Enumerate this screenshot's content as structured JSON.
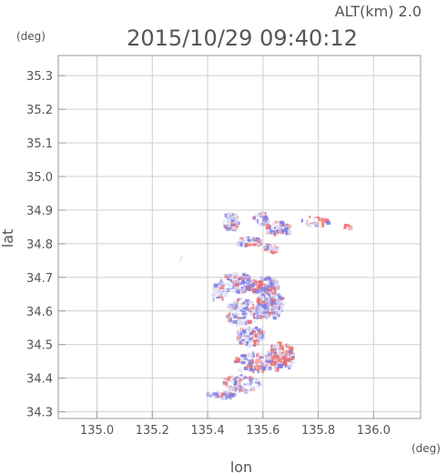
{
  "header": {
    "altitude_label": "ALT(km) 2.0",
    "timestamp": "2015/10/29 09:40:12",
    "y_unit": "(deg)",
    "x_unit": "(deg)"
  },
  "chart_data": {
    "type": "heatmap",
    "title": "2015/10/29 09:40:12",
    "subtitle": "ALT(km) 2.0",
    "xlabel": "lon",
    "ylabel": "lat",
    "xlim": [
      134.86,
      136.17
    ],
    "ylim": [
      34.28,
      35.36
    ],
    "grid": true,
    "x_ticks": [
      {
        "value": 135.0,
        "label": "135.0"
      },
      {
        "value": 135.2,
        "label": "135.2"
      },
      {
        "value": 135.4,
        "label": "135.4"
      },
      {
        "value": 135.6,
        "label": "135.6"
      },
      {
        "value": 135.8,
        "label": "135.8"
      },
      {
        "value": 136.0,
        "label": "136.0"
      }
    ],
    "y_ticks": [
      {
        "value": 34.3,
        "label": "34.3"
      },
      {
        "value": 34.4,
        "label": "34.4"
      },
      {
        "value": 34.5,
        "label": "34.5"
      },
      {
        "value": 34.6,
        "label": "34.6"
      },
      {
        "value": 34.7,
        "label": "34.7"
      },
      {
        "value": 34.8,
        "label": "34.8"
      },
      {
        "value": 34.9,
        "label": "34.9"
      },
      {
        "value": 35.0,
        "label": "35.0"
      },
      {
        "value": 35.1,
        "label": "35.1"
      },
      {
        "value": 35.2,
        "label": "35.2"
      },
      {
        "value": 35.3,
        "label": "35.3"
      }
    ],
    "colors": {
      "positive": "#ee6f6f",
      "negative": "#7f7fe6",
      "neutral": "#dcdcf2",
      "grid": "#cfcfcf",
      "frame": "#9a9a9a"
    },
    "clusters": [
      {
        "lon": 135.48,
        "lat": 34.87,
        "rlon": 0.03,
        "rlat": 0.025,
        "n": 55,
        "p": 0.2
      },
      {
        "lon": 135.59,
        "lat": 34.88,
        "rlon": 0.03,
        "rlat": 0.02,
        "n": 30,
        "p": 0.2
      },
      {
        "lon": 135.65,
        "lat": 34.85,
        "rlon": 0.05,
        "rlat": 0.02,
        "n": 45,
        "p": 0.25
      },
      {
        "lon": 135.78,
        "lat": 34.87,
        "rlon": 0.05,
        "rlat": 0.015,
        "n": 25,
        "p": 0.5
      },
      {
        "lon": 135.9,
        "lat": 34.855,
        "rlon": 0.01,
        "rlat": 0.008,
        "n": 5,
        "p": 0.8
      },
      {
        "lon": 135.55,
        "lat": 34.81,
        "rlon": 0.05,
        "rlat": 0.015,
        "n": 40,
        "p": 0.2
      },
      {
        "lon": 135.62,
        "lat": 34.79,
        "rlon": 0.03,
        "rlat": 0.012,
        "n": 30,
        "p": 0.3
      },
      {
        "lon": 135.5,
        "lat": 34.69,
        "rlon": 0.06,
        "rlat": 0.03,
        "n": 120,
        "p": 0.15
      },
      {
        "lon": 135.6,
        "lat": 34.68,
        "rlon": 0.05,
        "rlat": 0.025,
        "n": 110,
        "p": 0.25
      },
      {
        "lon": 135.62,
        "lat": 34.62,
        "rlon": 0.05,
        "rlat": 0.04,
        "n": 160,
        "p": 0.25
      },
      {
        "lon": 135.52,
        "lat": 34.6,
        "rlon": 0.06,
        "rlat": 0.04,
        "n": 130,
        "p": 0.15
      },
      {
        "lon": 135.44,
        "lat": 34.66,
        "rlon": 0.03,
        "rlat": 0.03,
        "n": 30,
        "p": 0.1
      },
      {
        "lon": 135.55,
        "lat": 34.53,
        "rlon": 0.05,
        "rlat": 0.03,
        "n": 90,
        "p": 0.2
      },
      {
        "lon": 135.66,
        "lat": 34.47,
        "rlon": 0.05,
        "rlat": 0.04,
        "n": 110,
        "p": 0.35
      },
      {
        "lon": 135.56,
        "lat": 34.45,
        "rlon": 0.07,
        "rlat": 0.03,
        "n": 90,
        "p": 0.25
      },
      {
        "lon": 135.52,
        "lat": 34.39,
        "rlon": 0.07,
        "rlat": 0.025,
        "n": 90,
        "p": 0.25
      },
      {
        "lon": 135.44,
        "lat": 34.355,
        "rlon": 0.05,
        "rlat": 0.012,
        "n": 45,
        "p": 0.2
      },
      {
        "lon": 135.3,
        "lat": 34.76,
        "rlon": 0.004,
        "rlat": 0.004,
        "n": 2,
        "p": 0.0
      }
    ]
  }
}
